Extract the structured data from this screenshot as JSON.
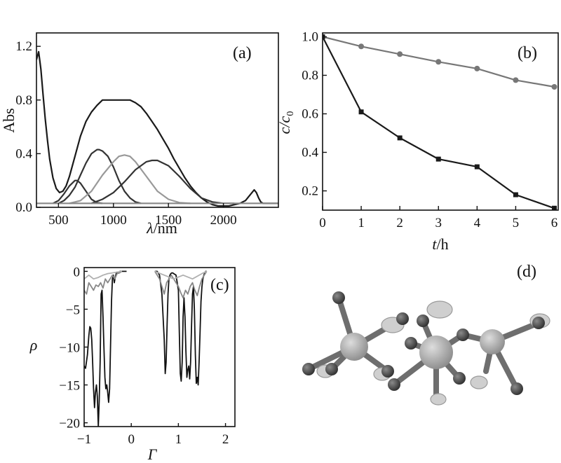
{
  "chart_data": [
    {
      "panel": "(a)",
      "type": "line",
      "xlabel": "λ",
      "xunit": "/nm",
      "ylabel": "Abs",
      "xlim": [
        300,
        2500
      ],
      "ylim": [
        0,
        1.3
      ],
      "xticks": [
        "500",
        "1000",
        "1500",
        "2000"
      ],
      "xtick_values": [
        500,
        1000,
        1500,
        2000
      ],
      "yticks": [
        "0.0",
        "0.4",
        "0.8",
        "1.2"
      ],
      "ytick_values": [
        0,
        0.4,
        0.8,
        1.2
      ],
      "series": [
        {
          "color": "#1a1a1a",
          "x": [
            300,
            320,
            340,
            360,
            380,
            400,
            420,
            450,
            480,
            510,
            540,
            570,
            600,
            650,
            700,
            750,
            800,
            850,
            900,
            950,
            1000,
            1050,
            1100,
            1150,
            1200,
            1250,
            1300,
            1350,
            1400,
            1450,
            1500,
            1550,
            1600,
            1650,
            1700,
            1750,
            1800,
            1850,
            1900,
            1950,
            2000,
            2050,
            2100,
            2150,
            2200,
            2250,
            2280,
            2300,
            2320,
            2340,
            2360,
            2400,
            2450,
            2500
          ],
          "y": [
            1.1,
            1.16,
            1.03,
            0.84,
            0.66,
            0.5,
            0.36,
            0.22,
            0.14,
            0.11,
            0.12,
            0.16,
            0.23,
            0.38,
            0.53,
            0.64,
            0.71,
            0.76,
            0.8,
            0.8,
            0.8,
            0.8,
            0.8,
            0.8,
            0.78,
            0.75,
            0.7,
            0.64,
            0.58,
            0.51,
            0.44,
            0.36,
            0.29,
            0.22,
            0.16,
            0.11,
            0.07,
            0.04,
            0.02,
            0.01,
            0.01,
            0.01,
            0.02,
            0.03,
            0.05,
            0.1,
            0.13,
            0.11,
            0.07,
            0.04,
            0.03,
            0.03,
            0.03,
            0.03
          ]
        },
        {
          "color": "#333333",
          "x": [
            450,
            500,
            550,
            600,
            650,
            670,
            700,
            750,
            800,
            850,
            900
          ],
          "y": [
            0.03,
            0.05,
            0.1,
            0.16,
            0.2,
            0.2,
            0.18,
            0.12,
            0.06,
            0.035,
            0.03
          ]
        },
        {
          "color": "#333333",
          "x": [
            500,
            550,
            600,
            650,
            700,
            750,
            800,
            850,
            870,
            900,
            950,
            1000,
            1050,
            1100,
            1150,
            1200,
            1250
          ],
          "y": [
            0.03,
            0.05,
            0.09,
            0.15,
            0.24,
            0.33,
            0.4,
            0.43,
            0.43,
            0.42,
            0.38,
            0.3,
            0.2,
            0.12,
            0.07,
            0.04,
            0.03
          ]
        },
        {
          "color": "#999999",
          "x": [
            600,
            700,
            800,
            900,
            1000,
            1050,
            1100,
            1150,
            1200,
            1300,
            1400,
            1500,
            1600,
            1700
          ],
          "y": [
            0.03,
            0.05,
            0.12,
            0.24,
            0.34,
            0.38,
            0.39,
            0.38,
            0.34,
            0.23,
            0.12,
            0.06,
            0.035,
            0.03
          ]
        },
        {
          "color": "#333333",
          "x": [
            800,
            900,
            1000,
            1100,
            1200,
            1300,
            1350,
            1400,
            1500,
            1600,
            1700,
            1800,
            1900,
            2000,
            2100
          ],
          "y": [
            0.03,
            0.06,
            0.11,
            0.19,
            0.28,
            0.34,
            0.35,
            0.35,
            0.31,
            0.23,
            0.14,
            0.07,
            0.04,
            0.03,
            0.03
          ]
        },
        {
          "color": "#888888",
          "x": [
            300,
            800,
            1400,
            2000,
            2500
          ],
          "y": [
            0.03,
            0.03,
            0.03,
            0.03,
            0.03
          ]
        }
      ]
    },
    {
      "panel": "(b)",
      "type": "line",
      "xlabel": "t",
      "xunit": "/h",
      "ylabel": "c/c",
      "ylabel_sub": "0",
      "xlim": [
        0,
        6.1
      ],
      "ylim": [
        0.1,
        1.02
      ],
      "xticks": [
        "0",
        "1",
        "2",
        "3",
        "4",
        "5",
        "6"
      ],
      "xtick_values": [
        0,
        1,
        2,
        3,
        4,
        5,
        6
      ],
      "yticks": [
        "0.2",
        "0.4",
        "0.6",
        "0.8",
        "1.0"
      ],
      "ytick_values": [
        0.2,
        0.4,
        0.6,
        0.8,
        1.0
      ],
      "series": [
        {
          "marker": "circle",
          "color": "#777777",
          "x": [
            0,
            1,
            2,
            3,
            4,
            5,
            6
          ],
          "y": [
            1.0,
            0.95,
            0.91,
            0.87,
            0.835,
            0.775,
            0.74
          ]
        },
        {
          "marker": "square",
          "color": "#1a1a1a",
          "x": [
            0,
            1,
            2,
            3,
            4,
            5,
            6
          ],
          "y": [
            1.0,
            0.61,
            0.475,
            0.365,
            0.325,
            0.18,
            0.11
          ]
        }
      ]
    },
    {
      "panel": "(c)",
      "type": "line",
      "xlabel": "Γ",
      "ylabel": "ρ",
      "xlim": [
        -1,
        2.2
      ],
      "ylim": [
        -20.5,
        0.5
      ],
      "xticks": [
        "−1",
        "0",
        "1",
        "2"
      ],
      "xtick_values": [
        -1,
        0,
        1,
        2
      ],
      "yticks": [
        "0",
        "−5",
        "−10",
        "−15",
        "−20"
      ],
      "ytick_values": [
        0,
        -5,
        -10,
        -15,
        -20
      ],
      "series": [
        {
          "color": "#111111",
          "x": [
            -1.0,
            -0.97,
            -0.93,
            -0.9,
            -0.88,
            -0.86,
            -0.84,
            -0.82,
            -0.8,
            -0.78,
            -0.76,
            -0.74,
            -0.72,
            -0.7,
            -0.68,
            -0.66,
            -0.64,
            -0.62,
            -0.6,
            -0.58,
            -0.56,
            -0.54,
            -0.52,
            -0.5,
            -0.48,
            -0.46,
            -0.44,
            -0.42,
            -0.4,
            -0.38,
            -0.36,
            -0.34,
            -0.32,
            -0.3,
            -0.28,
            -0.26,
            -0.24,
            -0.22,
            -0.2,
            -0.1
          ],
          "y": [
            -12.5,
            -12.8,
            -11.0,
            -8.5,
            -7.3,
            -7.5,
            -9.0,
            -12.0,
            -15.5,
            -18.0,
            -16.0,
            -15.0,
            -16.5,
            -20.5,
            -17.0,
            -12.0,
            -3.0,
            -2.5,
            -6.0,
            -10.0,
            -14.0,
            -15.5,
            -15.0,
            -16.0,
            -17.3,
            -15.5,
            -10.0,
            -4.0,
            -1.0,
            -0.5,
            -1.5,
            -0.8,
            -0.3,
            -0.1,
            -0.2,
            -0.1,
            0.0,
            0.0,
            0.0,
            0.0
          ]
        },
        {
          "color": "#111111",
          "x": [
            0.5,
            0.55,
            0.6,
            0.65,
            0.7,
            0.72,
            0.74,
            0.76,
            0.78,
            0.8,
            0.82,
            0.84,
            0.86,
            0.88,
            0.9,
            0.95,
            1.0,
            1.02,
            1.04,
            1.06,
            1.08,
            1.1,
            1.12,
            1.14,
            1.16,
            1.18,
            1.2,
            1.22,
            1.24,
            1.26,
            1.28,
            1.3,
            1.32,
            1.34,
            1.36,
            1.38,
            1.4,
            1.42,
            1.44,
            1.46,
            1.48,
            1.5,
            1.52,
            1.54,
            1.56,
            1.58,
            1.6
          ],
          "y": [
            0.0,
            0.0,
            -0.5,
            -3.0,
            -9.0,
            -13.5,
            -12.0,
            -7.0,
            -3.0,
            -1.0,
            -0.5,
            -0.3,
            -0.2,
            -0.2,
            -0.3,
            -0.5,
            -2.5,
            -8.0,
            -13.5,
            -14.5,
            -12.0,
            -6.0,
            -3.5,
            -6.0,
            -10.5,
            -14.0,
            -13.0,
            -12.5,
            -14.2,
            -12.0,
            -7.0,
            -3.0,
            -2.0,
            -5.0,
            -11.0,
            -14.8,
            -14.0,
            -15.0,
            -12.0,
            -8.0,
            -4.0,
            -2.0,
            -1.0,
            -0.5,
            -0.2,
            0.0,
            0.0
          ]
        },
        {
          "color": "#888888",
          "x": [
            -1.0,
            -0.95,
            -0.9,
            -0.85,
            -0.8,
            -0.75,
            -0.7,
            -0.65,
            -0.6,
            -0.55,
            -0.5,
            -0.45,
            -0.4,
            -0.35,
            -0.3,
            -0.25,
            -0.2
          ],
          "y": [
            -2.5,
            -3.0,
            -1.5,
            -2.0,
            -2.5,
            -1.8,
            -2.0,
            -1.5,
            -2.2,
            -1.0,
            -1.5,
            -1.0,
            -0.5,
            -1.0,
            -0.3,
            -0.2,
            0.0
          ]
        },
        {
          "color": "#888888",
          "x": [
            0.5,
            0.6,
            0.65,
            0.7,
            0.75,
            0.8,
            0.85,
            0.9,
            0.95,
            1.0,
            1.05,
            1.1,
            1.15,
            1.2,
            1.25,
            1.3,
            1.35,
            1.4,
            1.45,
            1.5,
            1.55,
            1.6
          ],
          "y": [
            0.0,
            -1.0,
            -2.0,
            -3.0,
            -1.5,
            -1.0,
            -0.5,
            -1.0,
            -1.5,
            -2.0,
            -2.8,
            -3.5,
            -2.5,
            -3.0,
            -2.0,
            -1.5,
            -2.5,
            -3.2,
            -2.0,
            -1.0,
            -0.5,
            0.0
          ]
        },
        {
          "color": "#b0b0b0",
          "x": [
            -1.0,
            -0.9,
            -0.8,
            -0.7,
            -0.6,
            -0.5,
            -0.4,
            -0.3,
            -0.2
          ],
          "y": [
            -1.0,
            -0.5,
            -1.0,
            -0.8,
            -0.5,
            -0.3,
            -0.2,
            -0.1,
            0.0
          ]
        },
        {
          "color": "#b0b0b0",
          "x": [
            0.5,
            0.7,
            0.9,
            1.1,
            1.3,
            1.5,
            1.6
          ],
          "y": [
            0.0,
            -0.5,
            -1.0,
            -0.5,
            -1.0,
            -0.3,
            0.0
          ]
        }
      ]
    }
  ],
  "panel_d": {
    "label": "(d)",
    "colors": {
      "metal": "#a6a6a6",
      "anion": "#4d4d4d",
      "bond": "#6e6e6e",
      "lobe": "#cfcfcf"
    }
  }
}
